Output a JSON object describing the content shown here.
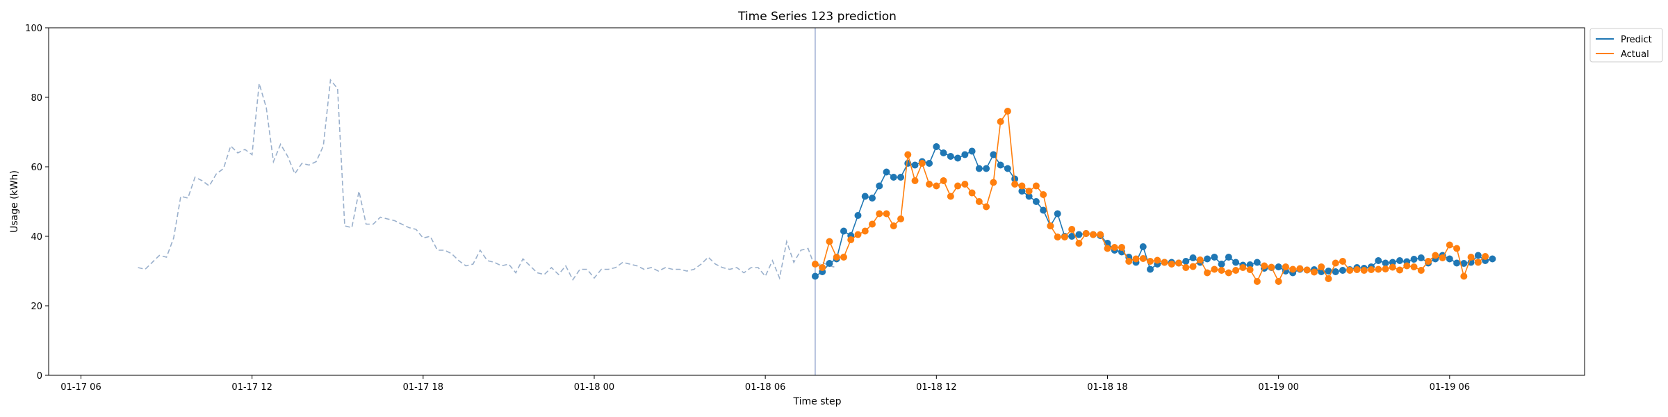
{
  "chart_data": {
    "type": "line",
    "title": "Time Series 123 prediction",
    "xlabel": "Time step",
    "ylabel": "Usage (kWh)",
    "ylim": [
      0,
      100
    ],
    "yticks": [
      0,
      20,
      40,
      60,
      80,
      100
    ],
    "xlim": [
      "01-17 04:52",
      "01-19 10:44"
    ],
    "xticks": [
      {
        "t": "01-17 06:00",
        "label": "01-17 06"
      },
      {
        "t": "01-17 12:00",
        "label": "01-17 12"
      },
      {
        "t": "01-17 18:00",
        "label": "01-17 18"
      },
      {
        "t": "01-18 00:00",
        "label": "01-18 00"
      },
      {
        "t": "01-18 06:00",
        "label": "01-18 06"
      },
      {
        "t": "01-18 12:00",
        "label": "01-18 12"
      },
      {
        "t": "01-18 18:00",
        "label": "01-18 18"
      },
      {
        "t": "01-19 00:00",
        "label": "01-19 00"
      },
      {
        "t": "01-19 06:00",
        "label": "01-19 06"
      }
    ],
    "forecast_start": "01-18 07:45",
    "interval_minutes": 15,
    "legend_position": "top-right, outside plot",
    "grid": false,
    "history": {
      "start": "01-17 08:00",
      "style": "dashed",
      "color": "#9ab0cc",
      "values": [
        31,
        30.5,
        32.5,
        34.5,
        34,
        39.5,
        51.5,
        51,
        57,
        56,
        54.5,
        58,
        59.5,
        66,
        64,
        65,
        63.5,
        84,
        77,
        61.5,
        66.5,
        63,
        58,
        61,
        60.5,
        61.5,
        66,
        85,
        82.5,
        43,
        42.5,
        53,
        43.5,
        43.5,
        45.5,
        45,
        44.5,
        43.5,
        42.5,
        42,
        39.5,
        40,
        36,
        36,
        35,
        33,
        31.5,
        32,
        36,
        33,
        32.5,
        31.5,
        32,
        29.5,
        33.5,
        31.5,
        29.5,
        29,
        31,
        29,
        31.5,
        27.5,
        30.5,
        30.5,
        28,
        30.5,
        30.5,
        31,
        32.5,
        32,
        31.5,
        30.5,
        31,
        30,
        31,
        30.5,
        30.5,
        30,
        30.5,
        32,
        34,
        32,
        31,
        30.5,
        31,
        29.5,
        31,
        31,
        28.5,
        33,
        28,
        38.5,
        32.5,
        36,
        36.5,
        31,
        32.5,
        31.5,
        31
      ]
    },
    "series": [
      {
        "name": "Predict",
        "color": "#1f77b4",
        "start": "01-18 07:45",
        "values": [
          28.5,
          29.8,
          32.2,
          33.5,
          41.5,
          40.2,
          46,
          51.5,
          51,
          54.5,
          58.5,
          57,
          57,
          61,
          60.5,
          61.5,
          61,
          65.8,
          64,
          63,
          62.5,
          63.5,
          64.5,
          59.5,
          59.5,
          63.5,
          60.5,
          59.5,
          56.5,
          53,
          51.5,
          50,
          47.5,
          43,
          46.5,
          40,
          40,
          40.5,
          40.8,
          40.5,
          40.2,
          38,
          36,
          35.5,
          34,
          32.5,
          37,
          30.5,
          32,
          32.5,
          32.5,
          32.3,
          32.8,
          33.8,
          32.5,
          33.5,
          34,
          32,
          34,
          32.5,
          31.7,
          31.8,
          32.5,
          30.8,
          31,
          31.2,
          30,
          29.5,
          30.5,
          30.3,
          30.4,
          29.8,
          30,
          29.8,
          30.2,
          30.4,
          31,
          30.8,
          31.2,
          33,
          32.3,
          32.5,
          33,
          32.7,
          33.4,
          33.8,
          32.3,
          33.5,
          34.5,
          33.5,
          32.3,
          32.2,
          32.5,
          34.5,
          33,
          33.5
        ]
      },
      {
        "name": "Actual",
        "color": "#ff7f0e",
        "start": "01-18 07:45",
        "values": [
          32,
          31,
          38.5,
          34,
          34,
          39,
          40.5,
          41.5,
          43.5,
          46.5,
          46.5,
          43,
          45,
          63.5,
          56,
          61,
          55,
          54.5,
          56,
          51.5,
          54.5,
          55,
          52.5,
          50,
          48.5,
          55.5,
          73,
          76,
          55,
          54.5,
          53,
          54.5,
          52,
          43,
          39.8,
          39.8,
          42,
          38,
          40.8,
          40.5,
          40.5,
          36.5,
          36.8,
          36.8,
          32.8,
          33.5,
          33.6,
          32.8,
          33.1,
          32.5,
          32,
          32.3,
          31,
          31.3,
          33.2,
          29.5,
          30.5,
          30.2,
          29.5,
          30.2,
          31,
          30.4,
          27,
          31.5,
          31.1,
          27,
          31.2,
          30.5,
          30.7,
          30.3,
          29.7,
          31.2,
          27.8,
          32.3,
          32.8,
          30.2,
          30.4,
          30.2,
          30.4,
          30.5,
          30.6,
          31.1,
          30.3,
          31.5,
          31.2,
          30.2,
          32.8,
          34.5,
          33.8,
          37.5,
          36.5,
          28.5,
          34,
          32.5,
          34.2
        ]
      }
    ]
  }
}
